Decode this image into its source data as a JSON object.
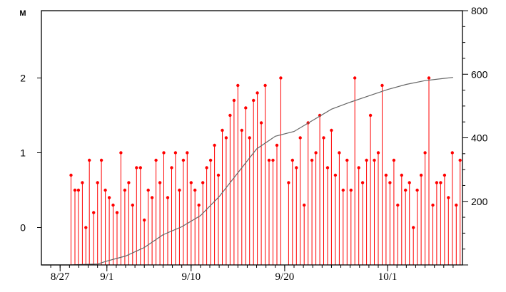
{
  "chart_data": {
    "type": "line",
    "title": "",
    "left_axis": {
      "unit_label": "M",
      "ylim": [
        -0.5,
        2.9
      ],
      "ticks": [
        0,
        1,
        2
      ],
      "tick_labels": [
        "0",
        "1",
        "2"
      ]
    },
    "right_axis": {
      "ylim": [
        0,
        800
      ],
      "ticks": [
        200,
        400,
        600,
        800
      ],
      "tick_labels": [
        "200",
        "400",
        "600",
        "800"
      ]
    },
    "x_axis": {
      "start": "2019-08-25",
      "end": "2019-10-09",
      "tick_labels": [
        {
          "date": "2019-08-27",
          "label": "8/27"
        },
        {
          "date": "2019-09-01",
          "label": "9/1"
        },
        {
          "date": "2019-09-10",
          "label": "9/10"
        },
        {
          "date": "2019-09-20",
          "label": "9/20"
        },
        {
          "date": "2019-10-01",
          "label": "10/1"
        }
      ]
    },
    "grid": false,
    "series": [
      {
        "type": "stem",
        "axis": "left",
        "color": "#ff0000",
        "x": [
          "2019-08-28T04:00",
          "2019-08-28T14:00",
          "2019-08-28T23:00",
          "2019-08-29T09:00",
          "2019-08-29T18:00",
          "2019-08-30T03:00",
          "2019-08-30T14:00",
          "2019-08-31T00:00",
          "2019-08-31T10:00",
          "2019-08-31T20:00",
          "2019-09-01T06:00",
          "2019-09-01T16:00",
          "2019-09-02T02:00",
          "2019-09-02T12:00",
          "2019-09-02T22:00",
          "2019-09-03T08:00",
          "2019-09-03T18:00",
          "2019-09-04T04:00",
          "2019-09-04T14:00",
          "2019-09-05T00:00",
          "2019-09-05T10:00",
          "2019-09-05T20:00",
          "2019-09-06T06:00",
          "2019-09-06T16:00",
          "2019-09-07T02:00",
          "2019-09-07T12:00",
          "2019-09-07T22:00",
          "2019-09-08T08:00",
          "2019-09-08T18:00",
          "2019-09-09T04:00",
          "2019-09-09T14:00",
          "2019-09-10T00:00",
          "2019-09-10T10:00",
          "2019-09-10T20:00",
          "2019-09-11T06:00",
          "2019-09-11T16:00",
          "2019-09-12T02:00",
          "2019-09-12T12:00",
          "2019-09-12T22:00",
          "2019-09-13T08:00",
          "2019-09-13T18:00",
          "2019-09-14T04:00",
          "2019-09-14T14:00",
          "2019-09-15T00:00",
          "2019-09-15T10:00",
          "2019-09-15T20:00",
          "2019-09-16T06:00",
          "2019-09-16T16:00",
          "2019-09-17T02:00",
          "2019-09-17T12:00",
          "2019-09-17T22:00",
          "2019-09-18T08:00",
          "2019-09-18T18:00",
          "2019-09-19T04:00",
          "2019-09-19T14:00",
          "2019-09-20T10:00",
          "2019-09-20T20:00",
          "2019-09-21T06:00",
          "2019-09-21T16:00",
          "2019-09-22T02:00",
          "2019-09-22T12:00",
          "2019-09-22T22:00",
          "2019-09-23T08:00",
          "2019-09-23T18:00",
          "2019-09-24T04:00",
          "2019-09-24T14:00",
          "2019-09-25T00:00",
          "2019-09-25T10:00",
          "2019-09-25T20:00",
          "2019-09-26T06:00",
          "2019-09-26T16:00",
          "2019-09-27T02:00",
          "2019-09-27T12:00",
          "2019-09-27T22:00",
          "2019-09-28T08:00",
          "2019-09-28T18:00",
          "2019-09-29T04:00",
          "2019-09-29T14:00",
          "2019-09-30T00:00",
          "2019-09-30T10:00",
          "2019-09-30T20:00",
          "2019-10-01T06:00",
          "2019-10-01T16:00",
          "2019-10-02T02:00",
          "2019-10-02T12:00",
          "2019-10-02T22:00",
          "2019-10-03T08:00",
          "2019-10-03T18:00",
          "2019-10-04T04:00",
          "2019-10-04T14:00",
          "2019-10-05T00:00",
          "2019-10-05T10:00",
          "2019-10-05T20:00",
          "2019-10-06T06:00",
          "2019-10-06T16:00",
          "2019-10-07T02:00",
          "2019-10-07T12:00",
          "2019-10-07T22:00",
          "2019-10-08T08:00",
          "2019-10-08T18:00"
        ],
        "y": [
          0.7,
          0.5,
          0.5,
          0.6,
          0.0,
          0.9,
          0.2,
          0.6,
          0.9,
          0.5,
          0.4,
          0.3,
          0.2,
          1.0,
          0.5,
          0.6,
          0.3,
          0.8,
          0.8,
          0.1,
          0.5,
          0.4,
          0.9,
          0.6,
          1.0,
          0.4,
          0.8,
          1.0,
          0.5,
          0.9,
          1.0,
          0.6,
          0.5,
          0.3,
          0.6,
          0.8,
          0.9,
          1.1,
          0.7,
          1.3,
          1.2,
          1.5,
          1.7,
          1.9,
          1.3,
          1.6,
          1.2,
          1.7,
          1.8,
          1.4,
          1.9,
          0.9,
          0.9,
          1.1,
          2.0,
          0.6,
          0.9,
          0.8,
          1.2,
          0.3,
          1.4,
          0.9,
          1.0,
          1.5,
          1.2,
          0.8,
          1.3,
          0.7,
          1.0,
          0.5,
          0.9,
          0.5,
          2.0,
          0.8,
          0.6,
          0.9,
          1.5,
          0.9,
          1.0,
          1.9,
          0.7,
          0.6,
          0.9,
          0.3,
          0.7,
          0.5,
          0.6,
          0.0,
          0.5,
          0.7,
          1.0,
          2.0,
          0.3,
          0.6,
          0.6,
          0.7,
          0.4,
          1.0,
          0.3,
          0.9
        ]
      },
      {
        "type": "line",
        "axis": "right",
        "color": "#666666",
        "x": [
          "2019-08-25",
          "2019-08-28",
          "2019-08-31",
          "2019-09-01",
          "2019-09-03",
          "2019-09-05",
          "2019-09-07",
          "2019-09-09",
          "2019-09-11",
          "2019-09-13",
          "2019-09-15",
          "2019-09-17",
          "2019-09-19",
          "2019-09-21",
          "2019-09-23",
          "2019-09-25",
          "2019-09-27",
          "2019-09-29",
          "2019-10-01",
          "2019-10-03",
          "2019-10-05",
          "2019-10-07",
          "2019-10-08"
        ],
        "y": [
          0,
          0,
          3,
          12,
          28,
          55,
          95,
          120,
          155,
          215,
          290,
          365,
          405,
          420,
          455,
          490,
          512,
          532,
          552,
          568,
          580,
          587,
          590
        ]
      }
    ]
  }
}
